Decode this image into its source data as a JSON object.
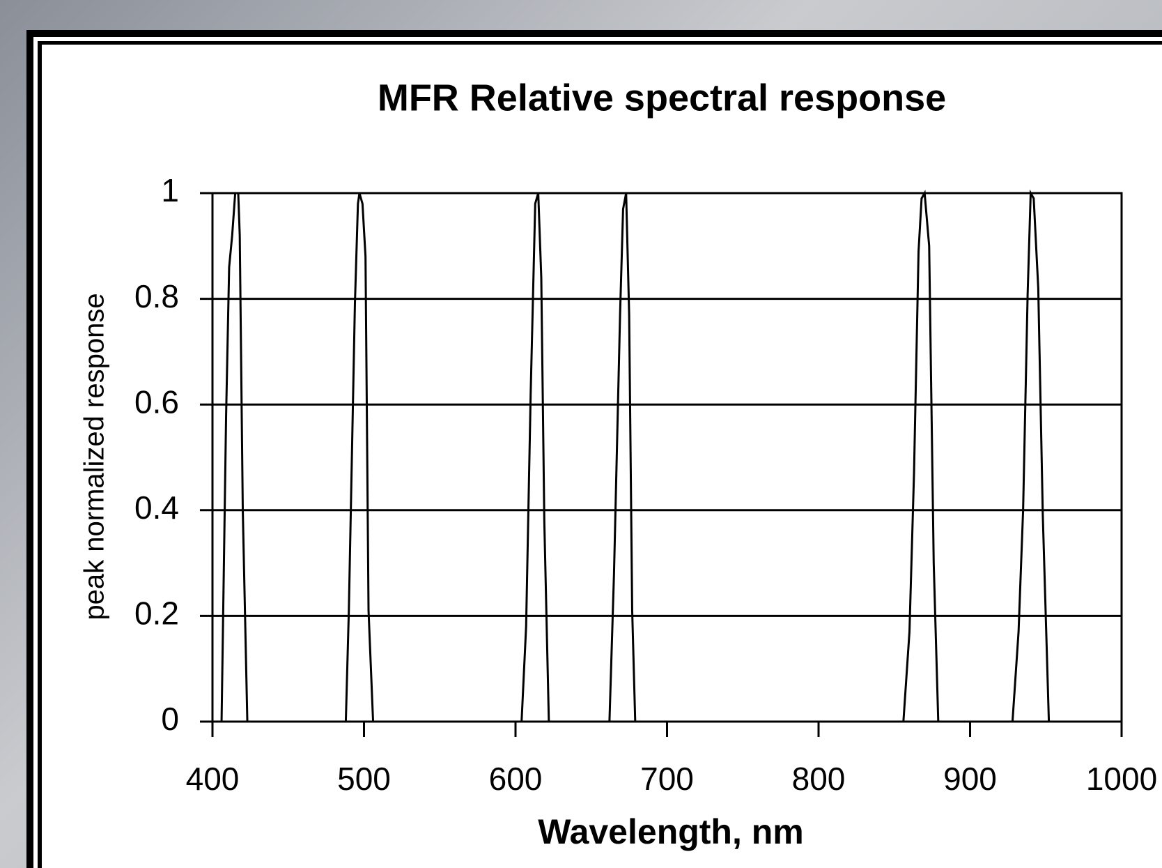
{
  "chart_data": {
    "type": "line",
    "title": "MFR Relative spectral response",
    "xlabel": "Wavelength, nm",
    "ylabel": "peak normalized response",
    "xlim": [
      400,
      1000
    ],
    "xticks": [
      400,
      500,
      600,
      700,
      800,
      900,
      1000
    ],
    "ylim": [
      0,
      1
    ],
    "yticks": [
      0,
      0.2,
      0.4,
      0.6,
      0.8,
      1
    ],
    "grid": true,
    "series": [
      {
        "color": "#000000",
        "x": [
          406,
          409,
          411,
          413,
          415,
          417,
          418,
          420,
          423
        ],
        "values": [
          0,
          0.58,
          0.86,
          0.92,
          1,
          1,
          0.92,
          0.4,
          0
        ]
      },
      {
        "color": "#000000",
        "x": [
          488,
          490,
          494,
          496,
          497,
          499,
          501,
          503,
          506
        ],
        "values": [
          0,
          0.21,
          0.79,
          0.98,
          1,
          0.98,
          0.88,
          0.21,
          0
        ]
      },
      {
        "color": "#000000",
        "x": [
          604,
          607,
          610,
          613,
          615,
          617,
          619,
          622
        ],
        "values": [
          0,
          0.18,
          0.62,
          0.98,
          1,
          0.84,
          0.38,
          0
        ]
      },
      {
        "color": "#000000",
        "x": [
          662,
          665,
          669,
          671,
          673,
          675,
          677,
          679
        ],
        "values": [
          0,
          0.28,
          0.77,
          0.97,
          1,
          0.77,
          0.21,
          0
        ]
      },
      {
        "color": "#000000",
        "x": [
          856,
          860,
          863,
          866,
          868,
          870,
          873,
          876,
          879
        ],
        "values": [
          0,
          0.17,
          0.47,
          0.89,
          0.99,
          1,
          0.9,
          0.3,
          0
        ]
      },
      {
        "color": "#000000",
        "x": [
          928,
          932,
          935,
          938,
          940,
          942,
          945,
          948,
          952
        ],
        "values": [
          0,
          0.17,
          0.4,
          0.81,
          1,
          0.99,
          0.82,
          0.39,
          0
        ]
      }
    ]
  }
}
